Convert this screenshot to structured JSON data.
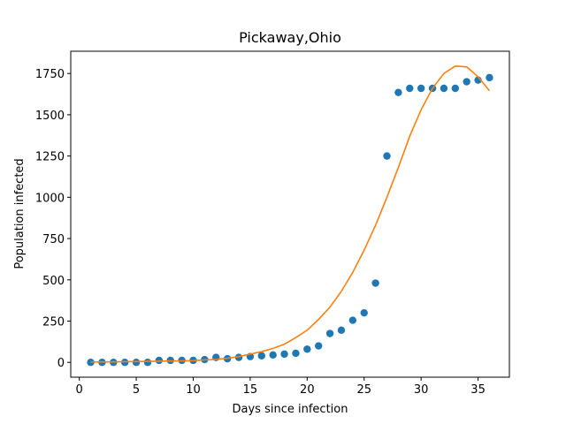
{
  "chart_data": {
    "type": "scatter",
    "title": "Pickaway,Ohio",
    "x_label": "Days since infection",
    "y_label": "Population infected",
    "x": [
      1,
      2,
      3,
      4,
      5,
      6,
      7,
      8,
      9,
      10,
      11,
      12,
      13,
      14,
      15,
      16,
      17,
      18,
      19,
      20,
      21,
      22,
      23,
      24,
      25,
      26,
      27,
      28,
      29,
      30,
      31,
      32,
      33,
      34,
      35,
      36
    ],
    "series": [
      {
        "type": "scatter",
        "color": "#1f77b4",
        "values": [
          0,
          0,
          0,
          0,
          0,
          0,
          12,
          12,
          12,
          12,
          17,
          30,
          22,
          30,
          35,
          40,
          45,
          50,
          55,
          80,
          100,
          175,
          195,
          255,
          300,
          480,
          1250,
          1635,
          1660,
          1660,
          1660,
          1660,
          1660,
          1700,
          1710,
          1725
        ]
      },
      {
        "type": "line",
        "color": "#ff7f0e",
        "values": [
          2,
          3,
          3,
          4,
          5,
          6,
          7,
          8,
          9,
          10,
          15,
          18,
          25,
          35,
          50,
          65,
          85,
          110,
          150,
          195,
          260,
          335,
          430,
          545,
          680,
          830,
          1000,
          1180,
          1370,
          1530,
          1660,
          1750,
          1795,
          1790,
          1730,
          1645
        ]
      }
    ],
    "xlim": [
      -0.75,
      37.75
    ],
    "xticks": [
      0,
      5,
      10,
      15,
      20,
      25,
      30,
      35
    ],
    "ylim": [
      -89.75,
      1884.75
    ],
    "yticks": [
      0,
      250,
      500,
      750,
      1000,
      1250,
      1500,
      1750
    ]
  }
}
